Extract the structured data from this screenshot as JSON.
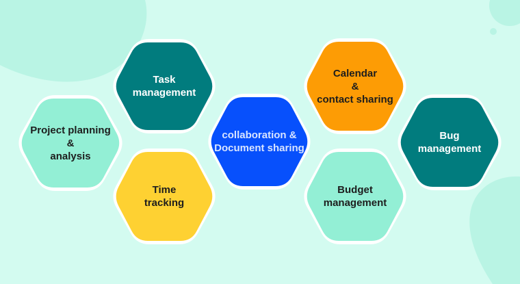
{
  "colors": {
    "background": "#d3fbf0",
    "blob": "#b9f4e4",
    "outline": "#ffffff",
    "mint": "#93efd5",
    "teal": "#017c7e",
    "yellow": "#fed132",
    "blue": "#0750fc",
    "orange": "#fd9c05"
  },
  "nodes": [
    {
      "id": "project-planning",
      "lines": [
        "Project planning",
        "&",
        "analysis"
      ],
      "fill": "#93efd5",
      "text_color": "#1d1d1d"
    },
    {
      "id": "task-management",
      "lines": [
        "Task",
        "management"
      ],
      "fill": "#017c7e",
      "text_color": "#ffffff"
    },
    {
      "id": "time-tracking",
      "lines": [
        "Time",
        "tracking"
      ],
      "fill": "#fed132",
      "text_color": "#1d1d1d"
    },
    {
      "id": "collaboration-document-sharing",
      "lines": [
        "collaboration &",
        "Document sharing"
      ],
      "fill": "#0750fc",
      "text_color": "#d8e4ff"
    },
    {
      "id": "calendar-contact-sharing",
      "lines": [
        "Calendar",
        "&",
        "contact sharing"
      ],
      "fill": "#fd9c05",
      "text_color": "#1d1d1d"
    },
    {
      "id": "budget-management",
      "lines": [
        "Budget",
        "management"
      ],
      "fill": "#93efd5",
      "text_color": "#1d1d1d"
    },
    {
      "id": "bug-management",
      "lines": [
        "Bug",
        "management"
      ],
      "fill": "#017c7e",
      "text_color": "#ffffff"
    }
  ]
}
